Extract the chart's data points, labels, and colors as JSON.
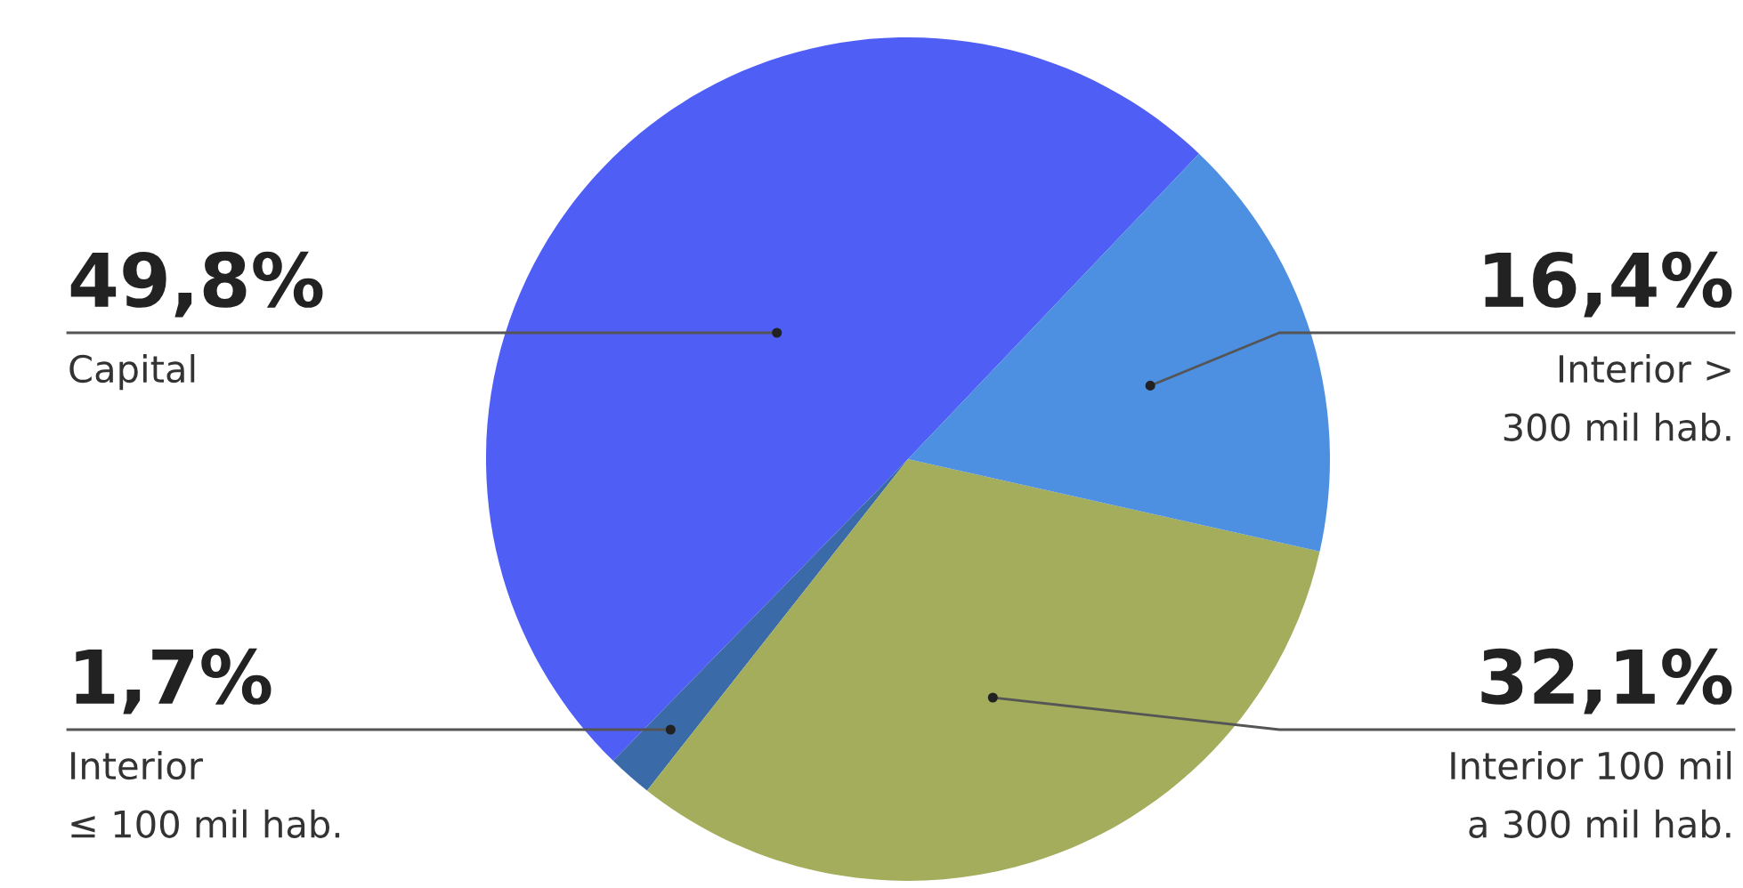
{
  "chart_data": {
    "type": "pie",
    "categories": [
      "Capital",
      "Interior\n≤ 100 mil hab.",
      "Interior 100 mil\na 300 mil hab.",
      "Interior >\n300 mil hab."
    ],
    "values": [
      49.8,
      1.7,
      32.1,
      16.4
    ],
    "value_labels": [
      "49,8%",
      "1,7%",
      "32,1%",
      "16,4%"
    ],
    "colors": [
      "#4f5ef5",
      "#3a6aa8",
      "#a3ad5c",
      "#4d8fe0"
    ]
  }
}
